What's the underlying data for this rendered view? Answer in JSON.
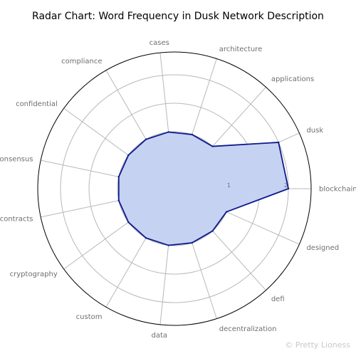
{
  "chart_data": {
    "type": "radar",
    "title": "Radar Chart: Word Frequency in Dusk Network Description",
    "categories": [
      "blockchain",
      "dusk",
      "applications",
      "architecture",
      "cases",
      "compliance",
      "confidential",
      "consensus",
      "contracts",
      "cryptography",
      "custom",
      "data",
      "decentralization",
      "defi",
      "designed"
    ],
    "values": [
      2,
      2,
      1,
      1,
      1,
      1,
      1,
      1,
      1,
      1,
      1,
      1,
      1,
      1,
      1
    ],
    "r_ticks": [
      1,
      2
    ],
    "r_range": [
      0,
      2.4
    ],
    "grid": true,
    "colors": {
      "fill": "#c6d2f2",
      "line": "#0d1a8c",
      "grid": "#b8b8b8",
      "outer": "#000000"
    }
  },
  "watermark": "© Pretty Lioness"
}
